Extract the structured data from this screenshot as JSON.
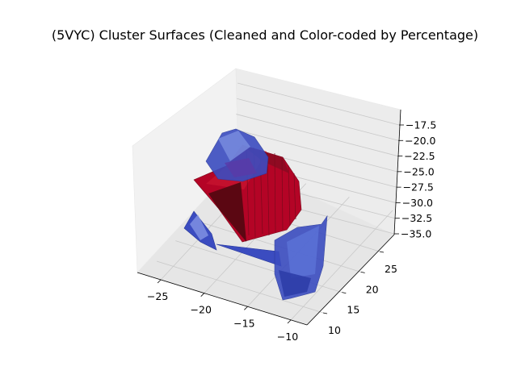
{
  "chart_data": {
    "type": "surface3d",
    "title": "(5VYC) Cluster Surfaces (Cleaned and Color-coded by Percentage)",
    "xlabel": "",
    "ylabel": "",
    "zlabel": "",
    "x_ticks": [
      "-25",
      "-20",
      "-15",
      "-10"
    ],
    "y_ticks": [
      "10",
      "15",
      "20",
      "25"
    ],
    "z_ticks": [
      "-17.5",
      "-20.0",
      "-22.5",
      "-25.0",
      "-27.5",
      "-30.0",
      "-32.5",
      "-35.0"
    ],
    "xlim": [
      -28,
      -7
    ],
    "ylim": [
      8,
      27
    ],
    "zlim": [
      -35,
      -16
    ],
    "colormap": "coolwarm",
    "series": [
      {
        "name": "",
        "color": "#b40426"
      },
      {
        "name": "",
        "color": "#3b4cc0"
      }
    ],
    "grid": true
  }
}
